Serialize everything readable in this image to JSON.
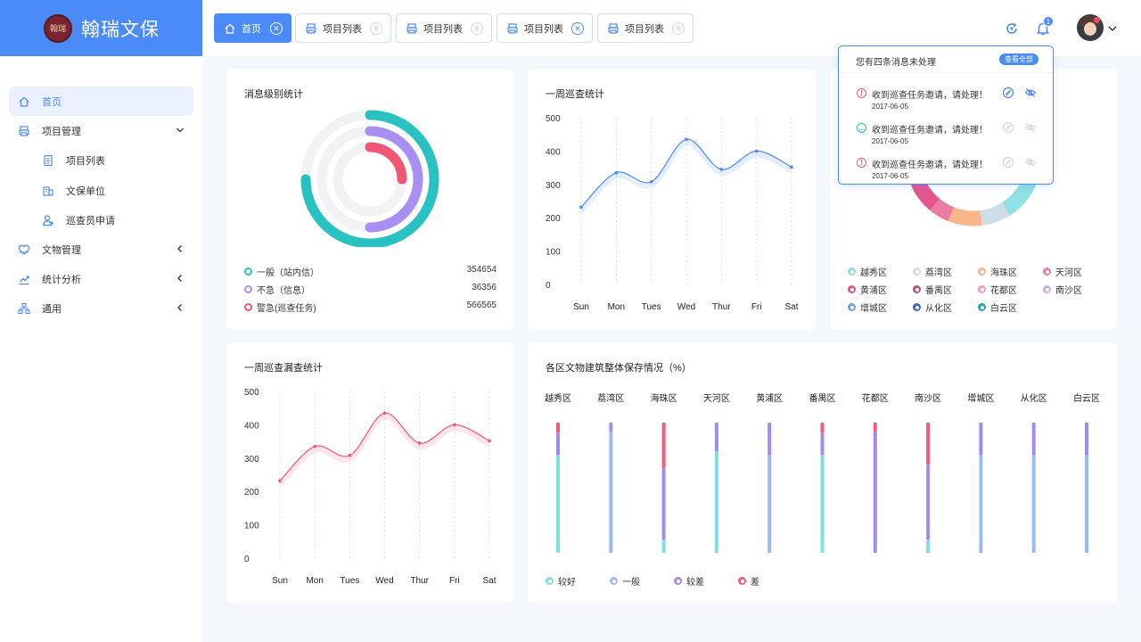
{
  "app": {
    "title": "翰瑞文保",
    "seal_text": "翰瑞"
  },
  "tabs": [
    {
      "label": "首页",
      "active": true
    },
    {
      "label": "项目列表",
      "active": false
    },
    {
      "label": "项目列表",
      "active": false
    },
    {
      "label": "项目列表",
      "active": false,
      "close_highlight": true
    },
    {
      "label": "项目列表",
      "active": false
    }
  ],
  "header": {
    "notification_count": "1",
    "icons": [
      "refresh-icon",
      "bell-icon",
      "chevron-down-icon"
    ]
  },
  "sidebar": {
    "items": [
      {
        "label": "首页",
        "icon": "home-icon",
        "active": true
      },
      {
        "label": "项目管理",
        "icon": "printer-icon",
        "expanded": true
      },
      {
        "label": "项目列表",
        "icon": "document-icon",
        "sub": true
      },
      {
        "label": "文保单位",
        "icon": "building-icon",
        "sub": true
      },
      {
        "label": "巡查员申请",
        "icon": "user-icon",
        "sub": true
      },
      {
        "label": "文物管理",
        "icon": "heart-icon",
        "expanded": false
      },
      {
        "label": "统计分析",
        "icon": "trend-icon",
        "expanded": false
      },
      {
        "label": "通用",
        "icon": "network-icon",
        "expanded": false
      }
    ]
  },
  "card_message_levels": {
    "title": "消息级别统计",
    "items": [
      {
        "label": "一般（站内信）",
        "value": "354654",
        "color": "#27c2c1",
        "fraction": 0.75
      },
      {
        "label": "不急（信息）",
        "value": "36356",
        "color": "#a98ef3",
        "fraction": 0.5
      },
      {
        "label": "警急(巡查任务)",
        "value": "566565",
        "color": "#ef5774",
        "fraction": 0.25
      }
    ]
  },
  "card_weekly_patrol": {
    "title": "一周巡查统计",
    "chart_data": {
      "type": "line",
      "title": "一周巡查统计",
      "categories": [
        "Sun",
        "Mon",
        "Tues",
        "Wed",
        "Thur",
        "Fri",
        "Sat"
      ],
      "values": [
        232,
        335,
        308,
        435,
        345,
        400,
        352
      ],
      "y_ticks": [
        "0",
        "100",
        "200",
        "300",
        "400",
        "500"
      ],
      "ylim": [
        0,
        500
      ],
      "color": "#4b8bf7"
    }
  },
  "card_district_donut": {
    "legend": [
      {
        "label": "越秀区",
        "color": "#8fe0e3"
      },
      {
        "label": "荔湾区",
        "color": "#cfdde6"
      },
      {
        "label": "海珠区",
        "color": "#f8b58a"
      },
      {
        "label": "天河区",
        "color": "#ea7ba2"
      },
      {
        "label": "黄浦区",
        "color": "#e4548d"
      },
      {
        "label": "番禺区",
        "color": "#b1557d"
      },
      {
        "label": "花都区",
        "color": "#f59ad0"
      },
      {
        "label": "南沙区",
        "color": "#c7b1dc"
      },
      {
        "label": "增城区",
        "color": "#6ea2e8"
      },
      {
        "label": "从化区",
        "color": "#3a64c4"
      },
      {
        "label": "白云区",
        "color": "#27a59c"
      }
    ]
  },
  "notifications": {
    "title": "您有四条消息未处理",
    "view_all": "查看全部",
    "items": [
      {
        "text": "收到巡查任务邀请，请处理！",
        "date": "2017-06-05",
        "type": "alert",
        "color": "#ef5774",
        "active": true
      },
      {
        "text": "收到巡查任务邀请，请处理！",
        "date": "2017-06-05",
        "type": "chat",
        "color": "#27c2c1",
        "active": false
      },
      {
        "text": "收到巡查任务邀请，请处理！",
        "date": "2017-06-05",
        "type": "alert",
        "color": "#ef5774",
        "active": false
      }
    ]
  },
  "card_weekly_missed": {
    "title": "一周巡查漏查统计",
    "chart_data": {
      "type": "line",
      "title": "一周巡查漏查统计",
      "categories": [
        "Sun",
        "Mon",
        "Tues",
        "Wed",
        "Thur",
        "Fri",
        "Sat"
      ],
      "values": [
        232,
        335,
        308,
        435,
        345,
        400,
        352
      ],
      "y_ticks": [
        "0",
        "100",
        "200",
        "300",
        "400",
        "500"
      ],
      "ylim": [
        0,
        500
      ],
      "color": "#ef5774"
    }
  },
  "card_preservation": {
    "title": "各区文物建筑整体保存情况（%）",
    "chart_data": {
      "type": "bar",
      "title": "各区文物建筑整体保存情况（%）",
      "categories": [
        "越秀区",
        "荔湾区",
        "海珠区",
        "天河区",
        "黄浦区",
        "番禺区",
        "花都区",
        "南沙区",
        "增城区",
        "从化区",
        "白云区"
      ],
      "series": [
        {
          "name": "较好",
          "color": "#7fe0df",
          "values": [
            75,
            0,
            10,
            78,
            0,
            75,
            0,
            10,
            0,
            0,
            0
          ]
        },
        {
          "name": "一般",
          "color": "#9bbaf5",
          "values": [
            0,
            93,
            0,
            0,
            75,
            0,
            0,
            0,
            75,
            75,
            75
          ]
        },
        {
          "name": "较差",
          "color": "#a28bee",
          "values": [
            17,
            7,
            55,
            22,
            25,
            17,
            93,
            58,
            25,
            25,
            25
          ]
        },
        {
          "name": "差",
          "color": "#ef5d78",
          "values": [
            8,
            0,
            35,
            0,
            0,
            8,
            7,
            32,
            0,
            0,
            0
          ]
        }
      ],
      "ylim": [
        0,
        100
      ]
    }
  }
}
